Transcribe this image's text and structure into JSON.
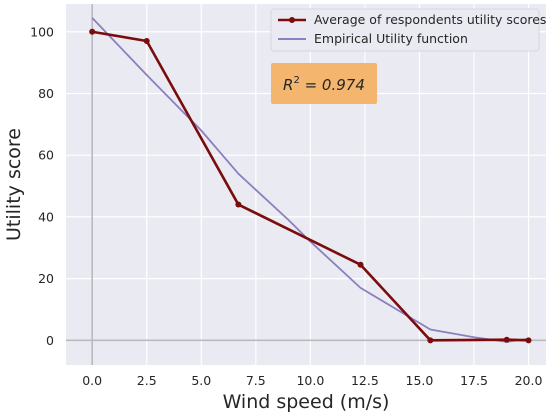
{
  "chart_data": {
    "type": "line",
    "xlabel": "Wind speed (m/s)",
    "ylabel": "Utility score",
    "xlim": [
      -1.2,
      20.8
    ],
    "ylim": [
      -8,
      109
    ],
    "xticks": [
      "0.0",
      "2.5",
      "5.0",
      "7.5",
      "10.0",
      "12.5",
      "15.0",
      "17.5",
      "20.0"
    ],
    "xtick_values": [
      0,
      2.5,
      5,
      7.5,
      10,
      12.5,
      15,
      17.5,
      20
    ],
    "yticks": [
      "0",
      "20",
      "40",
      "60",
      "80",
      "100"
    ],
    "ytick_values": [
      0,
      20,
      40,
      60,
      80,
      100
    ],
    "grid": true,
    "legend_position": "top-right",
    "series": [
      {
        "name": "Average of respondents utility scores",
        "color": "#7b0c0c",
        "marker": "circle",
        "x": [
          0,
          2.5,
          6.7,
          12.3,
          15.5,
          19,
          20
        ],
        "y": [
          100,
          97,
          44,
          24.5,
          0,
          0.2,
          0
        ]
      },
      {
        "name": "Empirical Utility function",
        "color": "#8b7fbf",
        "marker": "none",
        "x": [
          0,
          2.5,
          5,
          6.7,
          9,
          10,
          12.3,
          15.5,
          17.5,
          19,
          20
        ],
        "y": [
          104.5,
          86,
          68,
          54,
          39,
          32,
          17,
          3.5,
          1,
          -0.5,
          0.5
        ]
      }
    ],
    "annotation": {
      "text": "R² = 0.974",
      "base": "R",
      "superscript": "2",
      "rest": " = 0.974",
      "background": "#f4b66e"
    },
    "reference_lines": {
      "x": 0,
      "y": 0,
      "color": "#b9b9bf"
    },
    "background": "#eaeaf2"
  }
}
